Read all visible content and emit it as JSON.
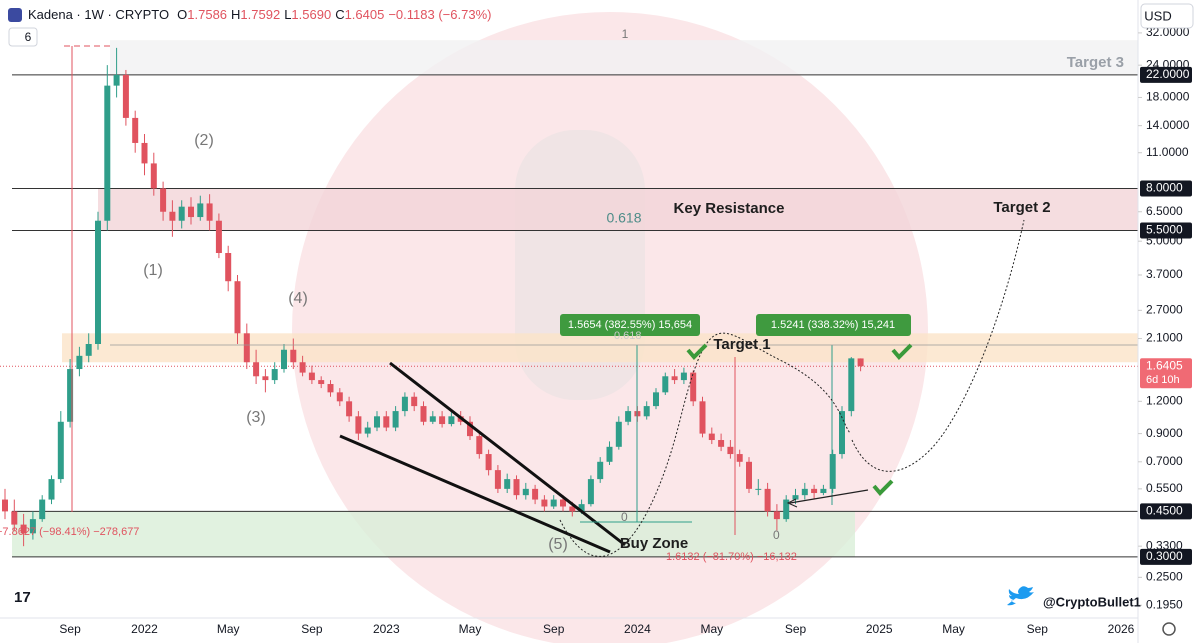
{
  "header": {
    "symbol": "Kadena · 1W · CRYPTO",
    "open_label": "O",
    "open": "1.7586",
    "high_label": "H",
    "high": "1.7592",
    "low_label": "L",
    "low": "1.5690",
    "close_label": "C",
    "close": "1.6405",
    "change": "−0.1183 (−6.73%)",
    "indicator_count": "6",
    "currency": "USD"
  },
  "annotations": {
    "target3": "Target 3",
    "target2": "Target 2",
    "target1": "Target 1",
    "key_resistance": "Key Resistance",
    "buy_zone": "Buy Zone",
    "fib_1": "1",
    "fib_618": "0.618",
    "fib_0a": "0",
    "fib_0b": "0",
    "fib_618b": "0.618",
    "wave1": "(1)",
    "wave2": "(2)",
    "wave3": "(3)",
    "wave4": "(4)",
    "wave5": "(5)",
    "measure1": "1.5654 (382.55%) 15,654",
    "measure2": "1.5241 (338.32%) 15,241",
    "measure3": "1.6132 (−81.70%) −16,132",
    "measure4": "−7.8627 (−98.41%) −278,677",
    "handle": "@CryptoBullet1",
    "logo": "17"
  },
  "chart_data": {
    "type": "candlestick",
    "log_scale": true,
    "ylim": [
      0.174,
      42.9
    ],
    "yticks": [
      {
        "value": 32,
        "label": "32.0000"
      },
      {
        "value": 24,
        "label": "24.0000"
      },
      {
        "value": 18,
        "label": "18.0000"
      },
      {
        "value": 14,
        "label": "14.0000"
      },
      {
        "value": 11,
        "label": "11.0000"
      },
      {
        "value": 6.5,
        "label": "6.5000"
      },
      {
        "value": 5,
        "label": "5.0000"
      },
      {
        "value": 3.7,
        "label": "3.7000"
      },
      {
        "value": 2.7,
        "label": "2.7000"
      },
      {
        "value": 2.1,
        "label": "2.1000"
      },
      {
        "value": 1.2,
        "label": "1.2000"
      },
      {
        "value": 0.9,
        "label": "0.9000"
      },
      {
        "value": 0.7,
        "label": "0.7000"
      },
      {
        "value": 0.55,
        "label": "0.5500"
      },
      {
        "value": 0.33,
        "label": "0.3300"
      },
      {
        "value": 0.25,
        "label": "0.2500"
      },
      {
        "value": 0.195,
        "label": "0.1950"
      }
    ],
    "levels": [
      {
        "value": 22,
        "label": "22.0000"
      },
      {
        "value": 8,
        "label": "8.0000"
      },
      {
        "value": 5.5,
        "label": "5.5000"
      },
      {
        "value": 0.45,
        "label": "0.4500"
      },
      {
        "value": 0.3,
        "label": "0.3000"
      }
    ],
    "last_price": {
      "value": 1.6405,
      "label": "1.6405"
    },
    "countdown": "6d 10h",
    "zones": [
      {
        "name": "target3",
        "range": [
          22,
          30
        ],
        "color": "#f1f1f3"
      },
      {
        "name": "resistance",
        "range": [
          5.5,
          8
        ],
        "color": "#f3d4d8"
      },
      {
        "name": "target1",
        "range": [
          1.7,
          2.2
        ],
        "color": "#fbe3c8"
      },
      {
        "name": "buy",
        "range": [
          0.3,
          0.45
        ],
        "color": "#d9efd8"
      }
    ],
    "up_color": "#2f9e8a",
    "down_color": "#e0535f",
    "categories": [
      null,
      null,
      null,
      null,
      null,
      null,
      null,
      "Sep",
      null,
      null,
      null,
      null,
      null,
      null,
      null,
      "2022",
      null,
      null,
      null,
      null,
      null,
      null,
      null,
      null,
      "May",
      null,
      null,
      null,
      null,
      null,
      null,
      null,
      null,
      "Sep",
      null,
      null,
      null,
      null,
      null,
      null,
      null,
      "2023",
      null,
      null,
      null,
      null,
      null,
      null,
      null,
      null,
      "May",
      null,
      null,
      null,
      null,
      null,
      null,
      null,
      null,
      "Sep",
      null,
      null,
      null,
      null,
      null,
      null,
      null,
      null,
      "2024",
      null,
      null,
      null,
      null,
      null,
      null,
      null,
      "May",
      null,
      null,
      null,
      null,
      null,
      null,
      null,
      null,
      "Sep",
      null,
      null,
      null,
      null,
      null,
      null,
      null,
      null,
      "2025",
      null,
      null,
      null,
      null,
      null,
      null,
      null,
      "May",
      null,
      null,
      null,
      null,
      null,
      null,
      null,
      null,
      "Sep",
      null,
      null,
      null,
      null,
      null,
      null,
      null,
      null,
      "2026"
    ],
    "open": [
      0.5,
      0.45,
      0.4,
      0.37,
      0.42,
      0.5,
      0.6,
      1.0,
      1.6,
      1.8,
      2.0,
      6,
      20,
      22,
      15,
      12,
      10,
      8,
      6.5,
      6,
      6.8,
      6.2,
      7,
      6,
      4.5,
      3.5,
      2.2,
      1.7,
      1.5,
      1.45,
      1.6,
      1.9,
      1.7,
      1.55,
      1.45,
      1.4,
      1.3,
      1.2,
      1.05,
      0.9,
      0.95,
      1.05,
      0.95,
      1.1,
      1.25,
      1.15,
      1.0,
      1.05,
      0.98,
      1.05,
      1.0,
      0.88,
      0.75,
      0.65,
      0.55,
      0.6,
      0.52,
      0.55,
      0.5,
      0.47,
      0.5,
      0.47,
      0.45,
      0.48,
      0.6,
      0.7,
      0.8,
      1.0,
      1.1,
      1.05,
      1.15,
      1.3,
      1.5,
      1.45,
      1.55,
      1.2,
      0.9,
      0.85,
      0.8,
      0.75,
      0.7,
      0.55,
      0.55,
      0.45,
      0.42,
      0.5,
      0.52,
      0.55,
      0.53,
      0.55,
      0.75,
      1.1,
      1.7586,
      null,
      null,
      null,
      null,
      null,
      null,
      null,
      null,
      null,
      null,
      null,
      null,
      null,
      null,
      null,
      null,
      null,
      null,
      null,
      null,
      null,
      null,
      null,
      null,
      null,
      null,
      null,
      null
    ],
    "high": [
      0.55,
      0.5,
      0.44,
      0.45,
      0.52,
      0.62,
      1.1,
      1.75,
      1.95,
      2.2,
      6.5,
      24,
      28,
      23,
      16,
      13,
      11,
      8.5,
      7.2,
      7.2,
      7.4,
      7.5,
      7.6,
      6.4,
      4.8,
      3.7,
      2.4,
      1.9,
      1.6,
      1.7,
      2.0,
      2.1,
      1.8,
      1.65,
      1.5,
      1.45,
      1.35,
      1.25,
      1.1,
      1.0,
      1.1,
      1.1,
      1.15,
      1.3,
      1.3,
      1.2,
      1.1,
      1.1,
      1.1,
      1.1,
      1.05,
      0.92,
      0.78,
      0.68,
      0.63,
      0.62,
      0.58,
      0.57,
      0.52,
      0.52,
      0.52,
      0.49,
      0.5,
      0.62,
      0.73,
      0.84,
      1.05,
      1.15,
      1.15,
      1.2,
      1.35,
      1.55,
      1.6,
      1.62,
      1.58,
      1.25,
      0.95,
      0.9,
      0.85,
      0.78,
      0.73,
      0.6,
      0.58,
      0.48,
      0.52,
      0.55,
      0.58,
      0.57,
      0.57,
      0.78,
      1.15,
      1.78,
      1.7592,
      null,
      null,
      null,
      null,
      null,
      null,
      null,
      null,
      null,
      null,
      null,
      null,
      null,
      null,
      null,
      null,
      null,
      null,
      null,
      null,
      null,
      null,
      null,
      null,
      null,
      null,
      null,
      null
    ],
    "low": [
      0.42,
      0.38,
      0.33,
      0.35,
      0.41,
      0.48,
      0.58,
      0.95,
      1.5,
      1.7,
      1.9,
      5.5,
      18,
      14,
      11,
      9,
      7.5,
      6,
      5.2,
      5.6,
      5.8,
      6,
      5.5,
      4.3,
      3.2,
      2.0,
      1.6,
      1.4,
      1.3,
      1.4,
      1.55,
      1.6,
      1.5,
      1.4,
      1.35,
      1.25,
      1.15,
      1.0,
      0.85,
      0.87,
      0.92,
      0.92,
      0.92,
      1.05,
      1.1,
      0.97,
      0.98,
      0.95,
      0.96,
      0.97,
      0.85,
      0.72,
      0.62,
      0.53,
      0.53,
      0.5,
      0.5,
      0.48,
      0.45,
      0.46,
      0.45,
      0.43,
      0.44,
      0.47,
      0.58,
      0.68,
      0.78,
      0.97,
      1.0,
      1.02,
      1.12,
      1.27,
      1.4,
      1.4,
      1.15,
      0.87,
      0.82,
      0.77,
      0.72,
      0.67,
      0.53,
      0.52,
      0.43,
      0.38,
      0.41,
      0.48,
      0.5,
      0.5,
      0.52,
      0.53,
      0.72,
      1.05,
      1.569,
      null,
      null,
      null,
      null,
      null,
      null,
      null,
      null,
      null,
      null,
      null,
      null,
      null,
      null,
      null,
      null,
      null,
      null,
      null,
      null,
      null,
      null,
      null,
      null,
      null,
      null,
      null,
      null
    ],
    "close": [
      0.45,
      0.4,
      0.37,
      0.42,
      0.5,
      0.6,
      1.0,
      1.6,
      1.8,
      2.0,
      6,
      20,
      22,
      15,
      12,
      10,
      8,
      6.5,
      6,
      6.8,
      6.2,
      7,
      6,
      4.5,
      3.5,
      2.2,
      1.7,
      1.5,
      1.45,
      1.6,
      1.9,
      1.7,
      1.55,
      1.45,
      1.4,
      1.3,
      1.2,
      1.05,
      0.9,
      0.95,
      1.05,
      0.95,
      1.1,
      1.25,
      1.15,
      1.0,
      1.05,
      0.98,
      1.05,
      1.0,
      0.88,
      0.75,
      0.65,
      0.55,
      0.6,
      0.52,
      0.55,
      0.5,
      0.47,
      0.5,
      0.47,
      0.45,
      0.48,
      0.6,
      0.7,
      0.8,
      1.0,
      1.1,
      1.05,
      1.15,
      1.3,
      1.5,
      1.45,
      1.55,
      1.2,
      0.9,
      0.85,
      0.8,
      0.75,
      0.7,
      0.55,
      0.55,
      0.45,
      0.42,
      0.5,
      0.52,
      0.55,
      0.53,
      0.55,
      0.75,
      1.1,
      1.76,
      1.6405,
      null,
      null,
      null,
      null,
      null,
      null,
      null,
      null,
      null,
      null,
      null,
      null,
      null,
      null,
      null,
      null,
      null,
      null,
      null,
      null,
      null,
      null,
      null,
      null,
      null,
      null,
      null,
      null
    ]
  }
}
